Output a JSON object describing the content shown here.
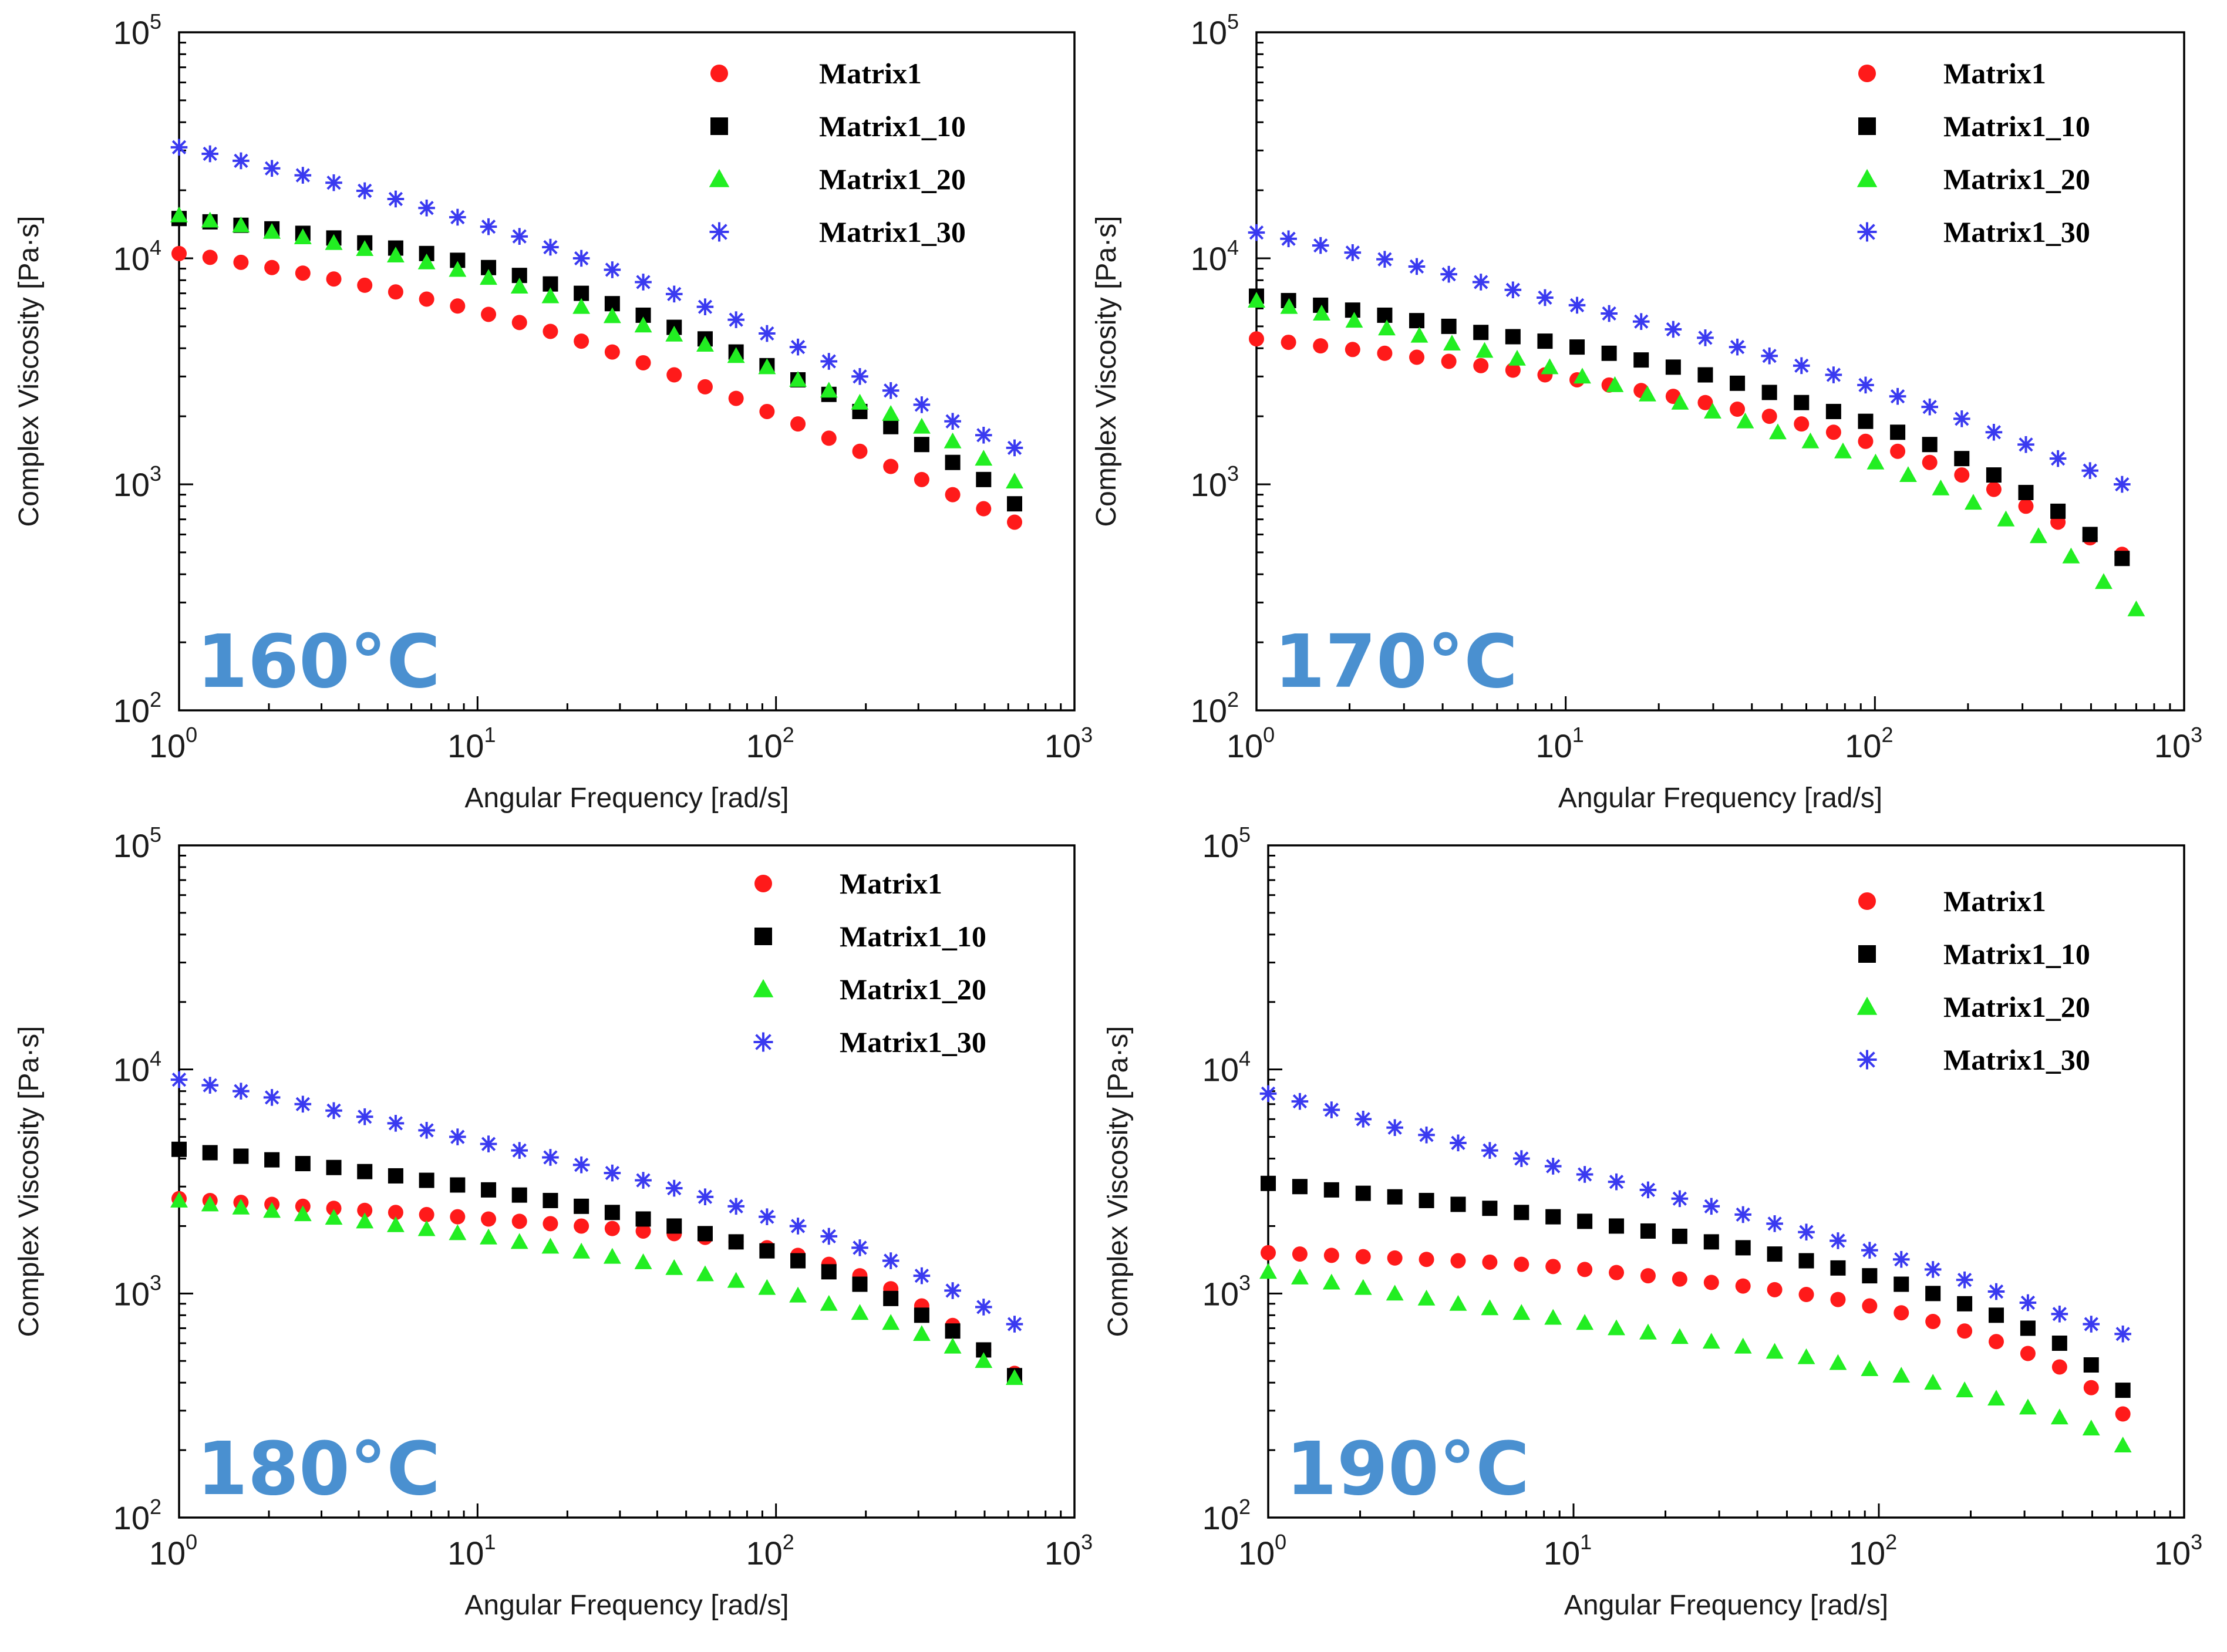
{
  "series_styles": [
    {
      "name": "Matrix1",
      "color": "#ff1a1a",
      "marker": "circle"
    },
    {
      "name": "Matrix1_10",
      "color": "#000000",
      "marker": "square"
    },
    {
      "name": "Matrix1_20",
      "color": "#22ee22",
      "marker": "triangle"
    },
    {
      "name": "Matrix1_30",
      "color": "#3a3af0",
      "marker": "star"
    }
  ],
  "chart_data": [
    {
      "type": "scatter",
      "title": "160°C",
      "xlabel": "Angular Frequency [rad/s]",
      "ylabel": "Complex Viscosity [Pa·s]",
      "xscale": "log",
      "yscale": "log",
      "xlim": [
        1,
        1000
      ],
      "ylim": [
        100,
        100000
      ],
      "xticks": [
        {
          "base": "10",
          "exp": "0"
        },
        {
          "base": "10",
          "exp": "1"
        },
        {
          "base": "10",
          "exp": "2"
        },
        {
          "base": "10",
          "exp": "3"
        }
      ],
      "yticks": [
        {
          "base": "10",
          "exp": "2"
        },
        {
          "base": "10",
          "exp": "3"
        },
        {
          "base": "10",
          "exp": "4"
        },
        {
          "base": "10",
          "exp": "5"
        }
      ],
      "legend": "top-right",
      "grid": false,
      "series": [
        {
          "name": "Matrix1",
          "freq_range": [
            1,
            630
          ],
          "values": [
            10500,
            10100,
            9600,
            9100,
            8600,
            8100,
            7600,
            7100,
            6600,
            6150,
            5650,
            5200,
            4750,
            4300,
            3850,
            3450,
            3050,
            2700,
            2400,
            2100,
            1850,
            1600,
            1400,
            1200,
            1050,
            900,
            780,
            680
          ]
        },
        {
          "name": "Matrix1_10",
          "freq_range": [
            1,
            630
          ],
          "values": [
            15000,
            14500,
            14000,
            13500,
            12900,
            12300,
            11700,
            11100,
            10500,
            9800,
            9100,
            8400,
            7700,
            7000,
            6300,
            5600,
            4950,
            4400,
            3850,
            3350,
            2900,
            2500,
            2100,
            1800,
            1500,
            1250,
            1050,
            820
          ]
        },
        {
          "name": "Matrix1_20",
          "freq_range": [
            1,
            630
          ],
          "values": [
            15500,
            14700,
            14000,
            13100,
            12400,
            11700,
            11000,
            10300,
            9600,
            8900,
            8200,
            7500,
            6800,
            6100,
            5550,
            5050,
            4600,
            4150,
            3700,
            3300,
            2900,
            2600,
            2300,
            2050,
            1800,
            1550,
            1300,
            1030
          ]
        },
        {
          "name": "Matrix1_30",
          "freq_range": [
            1,
            630
          ],
          "values": [
            31000,
            29000,
            27000,
            25000,
            23300,
            21600,
            19900,
            18300,
            16700,
            15200,
            13800,
            12500,
            11200,
            10000,
            8900,
            7850,
            6950,
            6100,
            5350,
            4650,
            4050,
            3500,
            3000,
            2600,
            2250,
            1900,
            1650,
            1450
          ]
        }
      ]
    },
    {
      "type": "scatter",
      "title": "170°C",
      "xlabel": "Angular Frequency [rad/s]",
      "ylabel": "Complex Viscosity [Pa·s]",
      "xscale": "log",
      "yscale": "log",
      "xlim": [
        1,
        1000
      ],
      "ylim": [
        100,
        100000
      ],
      "xticks": [
        {
          "base": "10",
          "exp": "0"
        },
        {
          "base": "10",
          "exp": "1"
        },
        {
          "base": "10",
          "exp": "2"
        },
        {
          "base": "10",
          "exp": "3"
        }
      ],
      "yticks": [
        {
          "base": "10",
          "exp": "2"
        },
        {
          "base": "10",
          "exp": "3"
        },
        {
          "base": "10",
          "exp": "4"
        },
        {
          "base": "10",
          "exp": "5"
        }
      ],
      "legend": "top-right",
      "grid": false,
      "series": [
        {
          "name": "Matrix1",
          "freq_range": [
            1,
            630
          ],
          "values": [
            4400,
            4250,
            4100,
            3950,
            3800,
            3650,
            3500,
            3350,
            3200,
            3050,
            2900,
            2750,
            2600,
            2450,
            2300,
            2150,
            2000,
            1850,
            1700,
            1550,
            1400,
            1250,
            1100,
            950,
            800,
            680,
            580,
            490
          ]
        },
        {
          "name": "Matrix1_10",
          "freq_range": [
            1,
            630
          ],
          "values": [
            6800,
            6500,
            6200,
            5900,
            5600,
            5300,
            5000,
            4700,
            4500,
            4300,
            4050,
            3800,
            3550,
            3300,
            3050,
            2800,
            2550,
            2300,
            2100,
            1900,
            1700,
            1500,
            1300,
            1100,
            920,
            760,
            600,
            470
          ]
        },
        {
          "name": "Matrix1_20",
          "freq_range": [
            1,
            700
          ],
          "values": [
            6500,
            6100,
            5700,
            5300,
            4900,
            4550,
            4200,
            3900,
            3600,
            3300,
            3000,
            2750,
            2500,
            2300,
            2100,
            1900,
            1700,
            1550,
            1400,
            1250,
            1100,
            960,
            830,
            700,
            590,
            480,
            370,
            280
          ]
        },
        {
          "name": "Matrix1_30",
          "freq_range": [
            1,
            630
          ],
          "values": [
            13000,
            12200,
            11400,
            10600,
            9900,
            9200,
            8500,
            7850,
            7250,
            6700,
            6200,
            5700,
            5250,
            4850,
            4450,
            4050,
            3700,
            3350,
            3050,
            2750,
            2450,
            2200,
            1950,
            1700,
            1500,
            1300,
            1150,
            1000
          ]
        }
      ]
    },
    {
      "type": "scatter",
      "title": "180°C",
      "xlabel": "Angular Frequency [rad/s]",
      "ylabel": "Complex Viscosity [Pa·s]",
      "xscale": "log",
      "yscale": "log",
      "xlim": [
        1,
        1000
      ],
      "ylim": [
        100,
        100000
      ],
      "xticks": [
        {
          "base": "10",
          "exp": "0"
        },
        {
          "base": "10",
          "exp": "1"
        },
        {
          "base": "10",
          "exp": "2"
        },
        {
          "base": "10",
          "exp": "3"
        }
      ],
      "yticks": [
        {
          "base": "10",
          "exp": "2"
        },
        {
          "base": "10",
          "exp": "3"
        },
        {
          "base": "10",
          "exp": "4"
        },
        {
          "base": "10",
          "exp": "5"
        }
      ],
      "legend": "top-right",
      "grid": false,
      "series": [
        {
          "name": "Matrix1",
          "freq_range": [
            1,
            630
          ],
          "values": [
            2650,
            2600,
            2550,
            2500,
            2450,
            2400,
            2350,
            2300,
            2250,
            2200,
            2150,
            2100,
            2050,
            2000,
            1950,
            1900,
            1850,
            1780,
            1700,
            1600,
            1480,
            1350,
            1200,
            1050,
            880,
            720,
            560,
            440
          ]
        },
        {
          "name": "Matrix1_10",
          "freq_range": [
            1,
            630
          ],
          "values": [
            4400,
            4250,
            4100,
            3950,
            3800,
            3650,
            3500,
            3350,
            3200,
            3050,
            2900,
            2750,
            2600,
            2450,
            2300,
            2150,
            2000,
            1850,
            1700,
            1550,
            1400,
            1250,
            1100,
            950,
            800,
            680,
            560,
            430
          ]
        },
        {
          "name": "Matrix1_20",
          "freq_range": [
            1,
            630
          ],
          "values": [
            2600,
            2500,
            2420,
            2340,
            2260,
            2180,
            2100,
            2020,
            1940,
            1860,
            1780,
            1700,
            1620,
            1540,
            1460,
            1380,
            1300,
            1220,
            1140,
            1060,
            980,
            900,
            820,
            740,
            660,
            580,
            500,
            420
          ]
        },
        {
          "name": "Matrix1_30",
          "freq_range": [
            1,
            630
          ],
          "values": [
            9000,
            8500,
            8000,
            7500,
            7000,
            6550,
            6150,
            5750,
            5350,
            5000,
            4650,
            4350,
            4050,
            3750,
            3450,
            3200,
            2950,
            2700,
            2450,
            2200,
            2000,
            1800,
            1600,
            1400,
            1200,
            1030,
            870,
            730
          ]
        }
      ]
    },
    {
      "type": "scatter",
      "title": "190°C",
      "xlabel": "Angular Frequency [rad/s]",
      "ylabel": "Complex Viscosity [Pa·s]",
      "xscale": "log",
      "yscale": "log",
      "xlim": [
        1,
        1000
      ],
      "ylim": [
        100,
        100000
      ],
      "xticks": [
        {
          "base": "10",
          "exp": "0"
        },
        {
          "base": "10",
          "exp": "1"
        },
        {
          "base": "10",
          "exp": "2"
        },
        {
          "base": "10",
          "exp": "3"
        }
      ],
      "yticks": [
        {
          "base": "10",
          "exp": "2"
        },
        {
          "base": "10",
          "exp": "3"
        },
        {
          "base": "10",
          "exp": "4"
        },
        {
          "base": "10",
          "exp": "5"
        }
      ],
      "legend": "top-right",
      "grid": false,
      "series": [
        {
          "name": "Matrix1",
          "freq_range": [
            1,
            630
          ],
          "values": [
            1520,
            1500,
            1480,
            1460,
            1440,
            1420,
            1400,
            1380,
            1350,
            1320,
            1280,
            1240,
            1200,
            1160,
            1120,
            1080,
            1040,
            990,
            940,
            880,
            820,
            750,
            680,
            610,
            540,
            470,
            380,
            290
          ]
        },
        {
          "name": "Matrix1_10",
          "freq_range": [
            1,
            630
          ],
          "values": [
            3100,
            3000,
            2900,
            2800,
            2700,
            2600,
            2500,
            2400,
            2300,
            2200,
            2100,
            2000,
            1900,
            1800,
            1700,
            1600,
            1500,
            1400,
            1300,
            1200,
            1100,
            1000,
            900,
            800,
            700,
            600,
            480,
            370
          ]
        },
        {
          "name": "Matrix1_20",
          "freq_range": [
            1,
            630
          ],
          "values": [
            1250,
            1180,
            1120,
            1060,
            1000,
            950,
            900,
            860,
            820,
            780,
            740,
            700,
            670,
            640,
            610,
            580,
            550,
            520,
            490,
            460,
            430,
            400,
            370,
            340,
            310,
            280,
            250,
            210
          ]
        },
        {
          "name": "Matrix1_30",
          "freq_range": [
            1,
            630
          ],
          "values": [
            7800,
            7200,
            6600,
            6000,
            5500,
            5100,
            4700,
            4350,
            4000,
            3700,
            3400,
            3150,
            2900,
            2650,
            2450,
            2250,
            2050,
            1880,
            1720,
            1560,
            1420,
            1280,
            1150,
            1020,
            910,
            810,
            730,
            660
          ]
        }
      ]
    }
  ]
}
